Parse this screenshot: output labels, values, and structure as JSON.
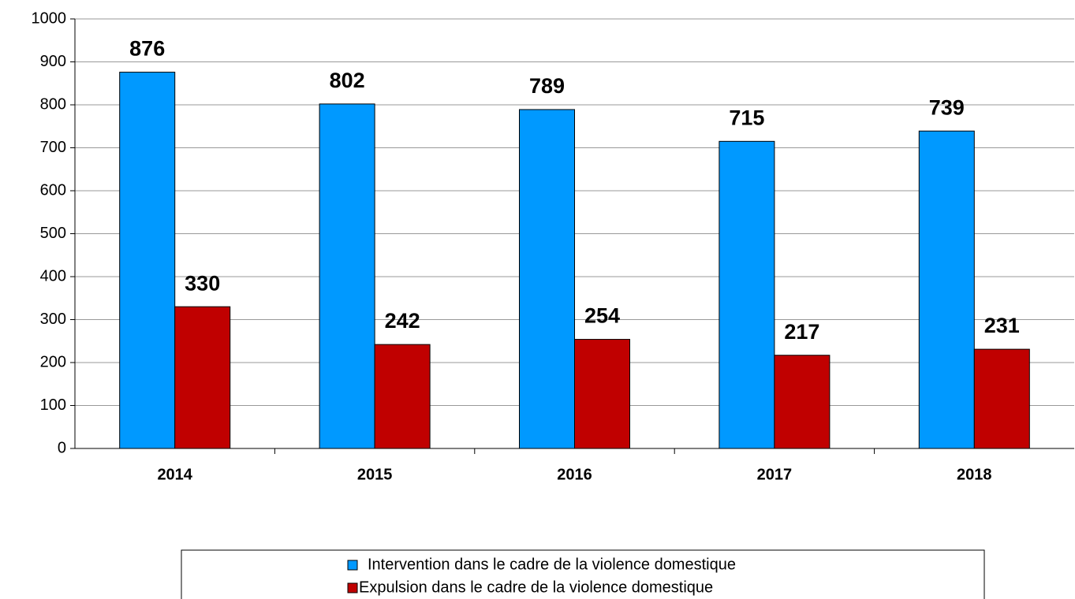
{
  "chart_data": {
    "type": "bar",
    "categories": [
      "2014",
      "2015",
      "2016",
      "2017",
      "2018"
    ],
    "series": [
      {
        "name": "Intervention dans le cadre de la violence domestique",
        "color": "#0099ff",
        "values": [
          876,
          802,
          789,
          715,
          739
        ]
      },
      {
        "name": "Expulsion dans le cadre de la violence domestique",
        "color": "#c00000",
        "values": [
          330,
          242,
          254,
          217,
          231
        ]
      }
    ],
    "ylim": [
      0,
      1000
    ],
    "yticks": [
      0,
      100,
      200,
      300,
      400,
      500,
      600,
      700,
      800,
      900,
      1000
    ],
    "grid": true,
    "legend": "bottom"
  }
}
